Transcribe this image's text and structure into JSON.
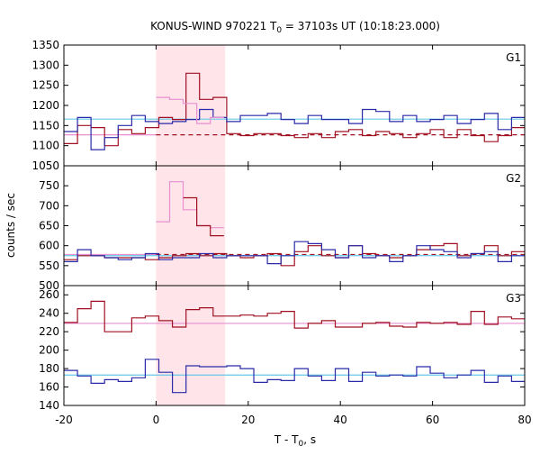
{
  "chart_data": {
    "type": "line",
    "title": "KONUS-WIND 970221 T",
    "title_sub": "0",
    "title_rest": " = 37103s UT (10:18:23.000)",
    "xlabel": "T - T",
    "xlabel_sub": "0",
    "xlabel_rest": ", s",
    "ylabel": "counts / sec",
    "xlim": [
      -20,
      80
    ],
    "xticks": [
      -20,
      0,
      20,
      40,
      60,
      80
    ],
    "highlight_range": [
      0,
      15
    ],
    "colors": {
      "dark_red": "#a01020",
      "blue": "#2a2aa8",
      "light_blue": "#66c8e8",
      "pink": "#e890d0",
      "highlight": "#ffe4ea"
    },
    "panels": [
      {
        "label": "G1",
        "ylim": [
          1050,
          1350
        ],
        "yticks": [
          1050,
          1100,
          1150,
          1200,
          1250,
          1300,
          1350
        ],
        "step_series": [
          {
            "color": "dark_red",
            "x0": -20,
            "dx": 2.944,
            "values": [
              1105,
              1150,
              1145,
              1100,
              1140,
              1130,
              1145,
              1170,
              1165,
              1280,
              1215,
              1220,
              1130,
              1125,
              1130,
              1130,
              1125,
              1120,
              1130,
              1120,
              1135,
              1140,
              1125,
              1135,
              1130,
              1120,
              1130,
              1140,
              1120,
              1140,
              1125,
              1110,
              1125,
              1145
            ]
          },
          {
            "color": "blue",
            "x0": -20,
            "dx": 2.944,
            "values": [
              1135,
              1170,
              1090,
              1120,
              1150,
              1175,
              1160,
              1155,
              1160,
              1165,
              1190,
              1170,
              1160,
              1175,
              1175,
              1180,
              1165,
              1155,
              1175,
              1165,
              1165,
              1155,
              1190,
              1185,
              1160,
              1175,
              1160,
              1165,
              1175,
              1155,
              1165,
              1180,
              1140,
              1170
            ]
          },
          {
            "color": "pink",
            "x0": 0,
            "dx": 2.944,
            "values": [
              1220,
              1215,
              1205,
              1155,
              1170
            ]
          }
        ],
        "hlines": [
          {
            "color": "light_blue",
            "y": 1166,
            "x0": -20,
            "x1": 80,
            "dash": false
          },
          {
            "color": "pink",
            "y": 1127,
            "x0": -20,
            "x1": 0,
            "dash": false
          },
          {
            "color": "dark_red",
            "y": 1127,
            "x0": 0,
            "x1": 80,
            "dash": true
          }
        ]
      },
      {
        "label": "G2",
        "ylim": [
          500,
          800
        ],
        "yticks": [
          500,
          550,
          600,
          650,
          700,
          750
        ],
        "step_series": [
          {
            "color": "dark_red",
            "x0": -20,
            "dx": 2.944,
            "values": [
              565,
              575,
              575,
              570,
              570,
              570,
              565,
              570,
              575,
              580,
              575,
              580,
              575,
              570,
              575,
              580,
              550,
              585,
              600,
              575,
              570,
              600,
              580,
              575,
              570,
              575,
              590,
              600,
              605,
              575,
              580,
              600,
              575,
              585
            ]
          },
          {
            "color": "blue",
            "x0": -20,
            "dx": 2.944,
            "values": [
              560,
              590,
              575,
              570,
              565,
              570,
              580,
              565,
              570,
              570,
              580,
              570,
              575,
              575,
              575,
              555,
              575,
              610,
              605,
              590,
              570,
              600,
              570,
              575,
              560,
              575,
              600,
              590,
              585,
              570,
              580,
              585,
              560,
              575
            ]
          },
          {
            "color": "pink",
            "x0": 0,
            "dx": 2.944,
            "values": [
              660,
              760,
              690,
              650,
              645
            ]
          },
          {
            "color": "dark_red",
            "x0": 5.889,
            "dx": 2.944,
            "values": [
              720,
              650,
              625
            ]
          }
        ],
        "hlines": [
          {
            "color": "light_blue",
            "y": 575,
            "x0": -20,
            "x1": 80,
            "dash": false
          },
          {
            "color": "pink",
            "y": 578,
            "x0": -20,
            "x1": 0,
            "dash": false
          },
          {
            "color": "dark_red",
            "y": 578,
            "x0": 0,
            "x1": 80,
            "dash": true
          }
        ]
      },
      {
        "label": "G3",
        "ylim": [
          140,
          270
        ],
        "yticks": [
          140,
          160,
          180,
          200,
          220,
          240,
          260
        ],
        "step_series": [
          {
            "color": "dark_red",
            "x0": -20,
            "dx": 2.944,
            "values": [
              230,
              245,
              253,
              220,
              220,
              235,
              237,
              232,
              225,
              244,
              246,
              237,
              237,
              238,
              237,
              240,
              242,
              224,
              229,
              232,
              225,
              225,
              229,
              230,
              226,
              225,
              230,
              229,
              230,
              228,
              242,
              228,
              236,
              234,
              227,
              222,
              220,
              228
            ]
          },
          {
            "color": "blue",
            "x0": -20,
            "dx": 2.944,
            "values": [
              178,
              172,
              164,
              168,
              166,
              170,
              190,
              176,
              154,
              183,
              182,
              182,
              183,
              180,
              165,
              168,
              167,
              180,
              172,
              167,
              180,
              166,
              176,
              172,
              173,
              172,
              182,
              175,
              170,
              173,
              178,
              165,
              172,
              166,
              182,
              176,
              166,
              178
            ]
          }
        ],
        "hlines": [
          {
            "color": "light_blue",
            "y": 173,
            "x0": -20,
            "x1": 80,
            "dash": false
          },
          {
            "color": "pink",
            "y": 229,
            "x0": -20,
            "x1": 80,
            "dash": false
          }
        ]
      }
    ]
  }
}
